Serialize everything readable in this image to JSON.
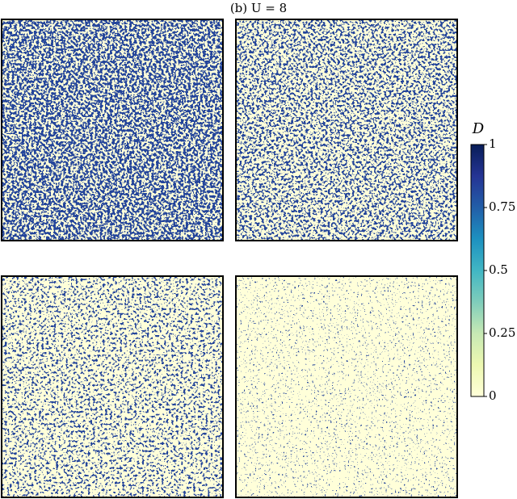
{
  "chart_data": {
    "type": "heatmap",
    "title": "(b) U = 8",
    "colorbar": {
      "label": "D",
      "lim": [
        0,
        1
      ],
      "ticks": [
        0,
        0.25,
        0.5,
        0.75,
        1
      ],
      "colormap": [
        "#ffffd9",
        "#edf8b1",
        "#c7e9b4",
        "#7fcdbb",
        "#41b6c4",
        "#1d91c0",
        "#225ea8",
        "#253494",
        "#081d58"
      ]
    }
  }
}
